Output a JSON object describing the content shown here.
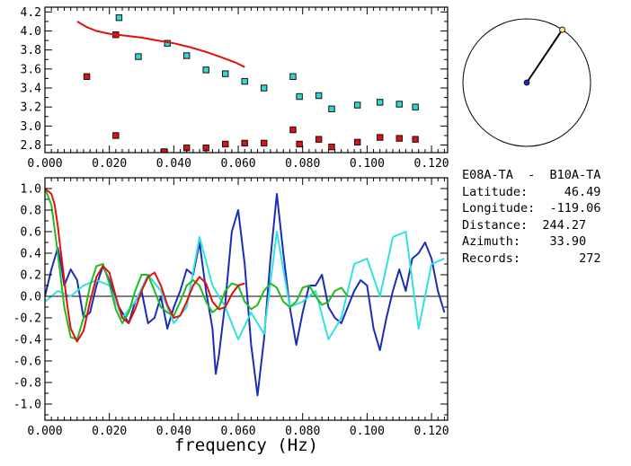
{
  "colors": {
    "background": "#ffffff",
    "axes": "#000000",
    "upper_cyan_markers": "#33d6d6",
    "upper_red_markers": "#e01010",
    "red_line": "#e01010",
    "dark_blue": "#1a2db8",
    "cyan": "#33e0e0",
    "green": "#22bb22",
    "dot": "#1a2db8",
    "dot_end": "#ffe680"
  },
  "info_panel": {
    "title": "E08A-TA  -  B10A-TA",
    "lines": [
      {
        "label": "Latitude:",
        "value": "46.49"
      },
      {
        "label": "Longitude:",
        "value": "-119.06"
      },
      {
        "label": "Distance:",
        "value": "244.27"
      },
      {
        "label": "Azimuth:",
        "value": "33.90"
      },
      {
        "label": "Records:",
        "value": "272"
      }
    ]
  },
  "azimuth_dial": {
    "azimuth_deg": 33.9
  },
  "chart_data": [
    {
      "type": "scatter",
      "xlim": [
        0.0,
        0.125
      ],
      "ylim": [
        2.72,
        4.25
      ],
      "x_ticks": [
        "0.000",
        "0.020",
        "0.040",
        "0.060",
        "0.080",
        "0.100",
        "0.120"
      ],
      "y_ticks": [
        "2.8",
        "3.0",
        "3.2",
        "3.4",
        "3.6",
        "3.8",
        "4.0",
        "4.2"
      ],
      "grid": false,
      "series": [
        {
          "marker": "square",
          "color": "#33d6d6",
          "x": [
            0.023,
            0.029,
            0.038,
            0.044,
            0.05,
            0.056,
            0.062,
            0.068,
            0.077,
            0.079,
            0.085,
            0.089,
            0.097,
            0.104,
            0.11,
            0.115
          ],
          "y": [
            4.14,
            3.73,
            3.87,
            3.74,
            3.59,
            3.55,
            3.47,
            3.4,
            3.52,
            3.31,
            3.32,
            3.18,
            3.22,
            3.25,
            3.23,
            3.2
          ]
        },
        {
          "marker": "square",
          "color": "#e01010",
          "x": [
            0.013,
            0.022,
            0.022,
            0.037,
            0.044,
            0.05,
            0.056,
            0.062,
            0.068,
            0.077,
            0.079,
            0.085,
            0.089,
            0.097,
            0.104,
            0.11,
            0.115
          ],
          "y": [
            3.52,
            3.96,
            2.9,
            2.73,
            2.77,
            2.77,
            2.81,
            2.82,
            2.82,
            2.96,
            2.81,
            2.86,
            2.78,
            2.83,
            2.88,
            2.87,
            2.86
          ]
        },
        {
          "line": true,
          "color": "#e01010",
          "x": [
            0.01,
            0.013,
            0.016,
            0.02,
            0.025,
            0.03,
            0.035,
            0.04,
            0.045,
            0.05,
            0.055,
            0.059,
            0.062
          ],
          "y": [
            4.1,
            4.04,
            4.0,
            3.97,
            3.95,
            3.93,
            3.9,
            3.87,
            3.83,
            3.78,
            3.72,
            3.67,
            3.62
          ]
        }
      ]
    },
    {
      "type": "line",
      "xlabel": "frequency (Hz)",
      "xlim": [
        0.0,
        0.125
      ],
      "ylim": [
        -1.15,
        1.1
      ],
      "x_ticks": [
        "0.000",
        "0.020",
        "0.040",
        "0.060",
        "0.080",
        "0.100",
        "0.120"
      ],
      "y_ticks": [
        "-1.0",
        "-0.8",
        "-0.6",
        "-0.4",
        "-0.2",
        "0.0",
        "0.2",
        "0.4",
        "0.6",
        "0.8",
        "1.0"
      ],
      "zero_line": true,
      "grid": false,
      "series": [
        {
          "color": "#1a2db8",
          "x": [
            0.0,
            0.002,
            0.004,
            0.005,
            0.006,
            0.008,
            0.01,
            0.012,
            0.014,
            0.016,
            0.018,
            0.02,
            0.022,
            0.024,
            0.026,
            0.028,
            0.03,
            0.032,
            0.034,
            0.036,
            0.038,
            0.04,
            0.042,
            0.044,
            0.046,
            0.048,
            0.05,
            0.052,
            0.053,
            0.054,
            0.056,
            0.058,
            0.06,
            0.062,
            0.064,
            0.066,
            0.068,
            0.07,
            0.072,
            0.074,
            0.076,
            0.078,
            0.08,
            0.082,
            0.084,
            0.086,
            0.088,
            0.09,
            0.092,
            0.094,
            0.096,
            0.098,
            0.1,
            0.102,
            0.104,
            0.106,
            0.108,
            0.11,
            0.112,
            0.114,
            0.116,
            0.118,
            0.12,
            0.122,
            0.124
          ],
          "y": [
            0.0,
            0.25,
            0.45,
            0.3,
            0.1,
            0.25,
            0.15,
            -0.2,
            -0.15,
            0.1,
            0.28,
            0.15,
            -0.05,
            -0.15,
            -0.25,
            -0.05,
            0.05,
            -0.25,
            -0.2,
            0.0,
            -0.3,
            -0.1,
            0.05,
            0.25,
            0.2,
            0.5,
            0.05,
            -0.3,
            -0.72,
            -0.55,
            -0.05,
            0.6,
            0.8,
            0.3,
            -0.45,
            -0.92,
            -0.4,
            0.35,
            0.95,
            0.4,
            -0.1,
            -0.45,
            -0.15,
            0.1,
            0.1,
            0.2,
            -0.1,
            -0.2,
            -0.25,
            -0.1,
            0.05,
            0.15,
            0.1,
            -0.3,
            -0.5,
            -0.2,
            0.05,
            0.25,
            0.05,
            0.35,
            0.4,
            0.5,
            0.35,
            0.05,
            -0.15
          ]
        },
        {
          "color": "#33e0e0",
          "x": [
            0.0,
            0.004,
            0.008,
            0.012,
            0.016,
            0.02,
            0.024,
            0.028,
            0.032,
            0.036,
            0.04,
            0.044,
            0.048,
            0.052,
            0.056,
            0.06,
            0.064,
            0.068,
            0.072,
            0.076,
            0.08,
            0.084,
            0.088,
            0.092,
            0.096,
            0.1,
            0.104,
            0.108,
            0.112,
            0.116,
            0.12,
            0.124
          ],
          "y": [
            -0.05,
            0.05,
            0.0,
            0.1,
            0.15,
            0.1,
            -0.2,
            -0.05,
            0.2,
            0.05,
            -0.25,
            -0.1,
            0.55,
            0.1,
            -0.1,
            -0.4,
            -0.15,
            -0.35,
            0.6,
            -0.1,
            -0.05,
            0.05,
            -0.4,
            -0.2,
            0.3,
            0.35,
            0.0,
            0.55,
            0.6,
            -0.3,
            0.3,
            0.35
          ]
        },
        {
          "color": "#22bb22",
          "x": [
            0.0,
            0.002,
            0.004,
            0.006,
            0.008,
            0.01,
            0.012,
            0.014,
            0.016,
            0.018,
            0.02,
            0.022,
            0.024,
            0.026,
            0.028,
            0.03,
            0.032,
            0.034,
            0.036,
            0.038,
            0.04,
            0.042,
            0.044,
            0.046,
            0.048,
            0.05,
            0.052,
            0.054,
            0.056,
            0.058,
            0.06,
            0.062,
            0.064,
            0.066,
            0.068,
            0.07,
            0.072,
            0.074,
            0.076,
            0.078,
            0.08,
            0.082,
            0.084,
            0.086,
            0.088,
            0.09,
            0.092,
            0.094
          ],
          "y": [
            1.0,
            0.85,
            0.4,
            -0.1,
            -0.38,
            -0.4,
            -0.2,
            0.1,
            0.28,
            0.3,
            0.12,
            -0.12,
            -0.25,
            -0.15,
            0.05,
            0.2,
            0.2,
            0.05,
            -0.1,
            -0.15,
            -0.18,
            -0.05,
            0.1,
            0.15,
            0.1,
            -0.05,
            -0.15,
            -0.1,
            0.05,
            0.12,
            0.1,
            -0.05,
            -0.12,
            -0.08,
            0.05,
            0.12,
            0.08,
            -0.05,
            -0.1,
            -0.05,
            0.08,
            0.1,
            0.0,
            -0.08,
            -0.05,
            0.05,
            0.08,
            0.0
          ]
        },
        {
          "color": "#e01010",
          "x": [
            0.0,
            0.002,
            0.003,
            0.004,
            0.005,
            0.006,
            0.007,
            0.008,
            0.01,
            0.012,
            0.014,
            0.016,
            0.018,
            0.02,
            0.022,
            0.024,
            0.026,
            0.028,
            0.03,
            0.032,
            0.034,
            0.036,
            0.038,
            0.04,
            0.042,
            0.044,
            0.046,
            0.048,
            0.05,
            0.052,
            0.054,
            0.056,
            0.058,
            0.06,
            0.062
          ],
          "y": [
            1.0,
            0.95,
            0.85,
            0.65,
            0.4,
            0.15,
            -0.1,
            -0.3,
            -0.42,
            -0.32,
            -0.05,
            0.18,
            0.28,
            0.22,
            0.0,
            -0.2,
            -0.25,
            -0.12,
            0.05,
            0.18,
            0.22,
            0.1,
            -0.08,
            -0.2,
            -0.18,
            -0.05,
            0.1,
            0.18,
            0.12,
            -0.05,
            -0.12,
            -0.1,
            0.02,
            0.1,
            0.12
          ]
        }
      ]
    }
  ]
}
